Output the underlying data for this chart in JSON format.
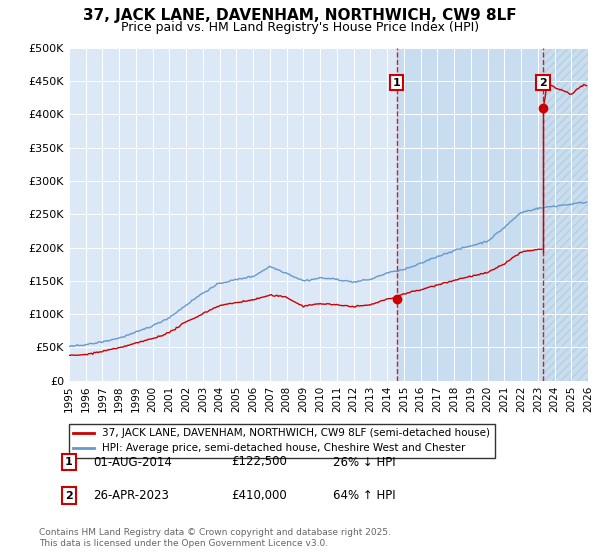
{
  "title": "37, JACK LANE, DAVENHAM, NORTHWICH, CW9 8LF",
  "subtitle": "Price paid vs. HM Land Registry's House Price Index (HPI)",
  "ylabel_ticks": [
    "£0",
    "£50K",
    "£100K",
    "£150K",
    "£200K",
    "£250K",
    "£300K",
    "£350K",
    "£400K",
    "£450K",
    "£500K"
  ],
  "ylim": [
    0,
    500000
  ],
  "xlim_start": 1995,
  "xlim_end": 2026,
  "hpi_color": "#6699cc",
  "price_color": "#cc0000",
  "sale1_date_label": "01-AUG-2014",
  "sale1_year": 2014.58,
  "sale1_price": 122500,
  "sale1_label": "1",
  "sale2_date_label": "26-APR-2023",
  "sale2_year": 2023.32,
  "sale2_price": 410000,
  "sale2_label": "2",
  "sale1_hpi_pct": "26% ↓ HPI",
  "sale2_hpi_pct": "64% ↑ HPI",
  "legend_label_red": "37, JACK LANE, DAVENHAM, NORTHWICH, CW9 8LF (semi-detached house)",
  "legend_label_blue": "HPI: Average price, semi-detached house, Cheshire West and Chester",
  "footnote": "Contains HM Land Registry data © Crown copyright and database right 2025.\nThis data is licensed under the Open Government Licence v3.0.",
  "background_color": "#ffffff",
  "plot_bg_color": "#dce8f5",
  "shade_color": "#c8ddf0",
  "grid_color": "#ffffff"
}
